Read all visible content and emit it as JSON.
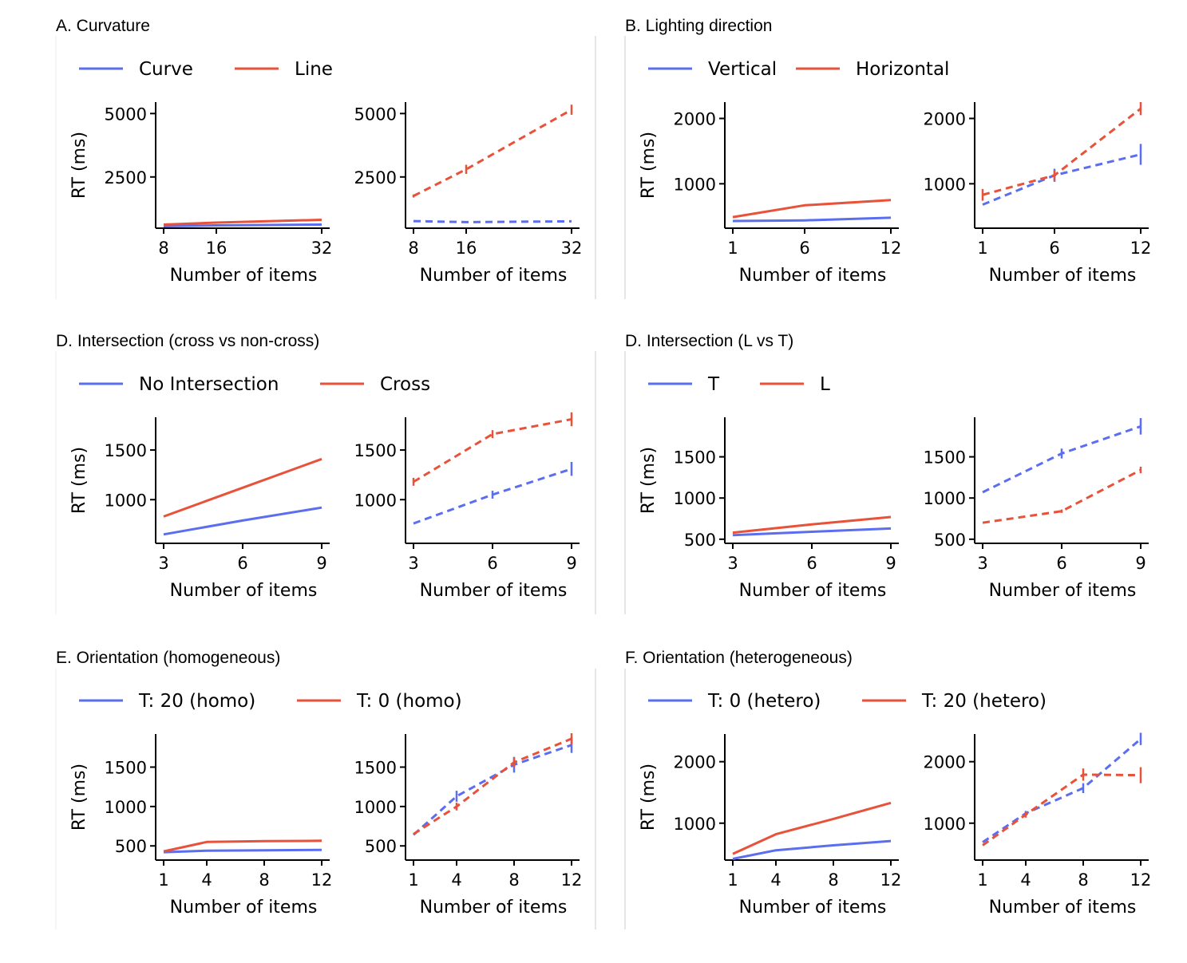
{
  "colors": {
    "series1": "#5b6ef0",
    "series2": "#e8523a",
    "divider": "#cccccc"
  },
  "chart_data": [
    {
      "title": "A.  Curvature",
      "type": "line",
      "legend": [
        "Curve",
        "Line"
      ],
      "xlabel": "Number of items",
      "ylabel": "RT (ms)",
      "x": [
        8,
        16,
        32
      ],
      "xticks": [
        "8",
        "16",
        "32"
      ],
      "xlim": [
        8,
        32
      ],
      "ylim": [
        480,
        5450
      ],
      "yticks": [
        2500,
        5000
      ],
      "subplots": [
        {
          "style": "solid",
          "series": [
            {
              "name": "Curve",
              "values": [
                560,
                590,
                620
              ]
            },
            {
              "name": "Line",
              "values": [
                620,
                700,
                810
              ]
            }
          ]
        },
        {
          "style": "dashed",
          "series": [
            {
              "name": "Curve",
              "values": [
                760,
                720,
                750
              ]
            },
            {
              "name": "Line",
              "values": [
                1750,
                2800,
                5150
              ],
              "err": [
                60,
                180,
                200
              ]
            }
          ]
        }
      ]
    },
    {
      "title": "B.  Lighting direction",
      "type": "line",
      "legend": [
        "Vertical",
        "Horizontal"
      ],
      "xlabel": "Number of items",
      "ylabel": "RT (ms)",
      "x": [
        1,
        6,
        12
      ],
      "xticks": [
        "1",
        "6",
        "12"
      ],
      "xlim": [
        1,
        12
      ],
      "ylim": [
        320,
        2250
      ],
      "yticks": [
        1000,
        2000
      ],
      "subplots": [
        {
          "style": "solid",
          "series": [
            {
              "name": "Vertical",
              "values": [
                430,
                440,
                480
              ]
            },
            {
              "name": "Horizontal",
              "values": [
                490,
                670,
                750
              ]
            }
          ]
        },
        {
          "style": "dashed",
          "series": [
            {
              "name": "Vertical",
              "values": [
                680,
                1130,
                1450
              ],
              "err": [
                0,
                100,
                160
              ]
            },
            {
              "name": "Horizontal",
              "values": [
                830,
                1130,
                2150
              ],
              "err": [
                90,
                80,
                100
              ]
            }
          ]
        }
      ]
    },
    {
      "title": "D.  Intersection (cross vs non-cross)",
      "type": "line",
      "legend": [
        "No Intersection",
        "Cross"
      ],
      "xlabel": "Number of items",
      "ylabel": "RT (ms)",
      "x": [
        3,
        6,
        9
      ],
      "xticks": [
        "3",
        "6",
        "9"
      ],
      "xlim": [
        3,
        9
      ],
      "ylim": [
        560,
        1830
      ],
      "yticks": [
        1000,
        1500
      ],
      "subplots": [
        {
          "style": "solid",
          "series": [
            {
              "name": "No Intersection",
              "values": [
                650,
                790,
                920
              ]
            },
            {
              "name": "Cross",
              "values": [
                830,
                1120,
                1410
              ]
            }
          ]
        },
        {
          "style": "dashed",
          "series": [
            {
              "name": "No Intersection",
              "values": [
                760,
                1050,
                1310
              ],
              "err": [
                0,
                40,
                70
              ]
            },
            {
              "name": "Cross",
              "values": [
                1180,
                1660,
                1810
              ],
              "err": [
                40,
                40,
                70
              ]
            }
          ]
        }
      ]
    },
    {
      "title": "D.  Intersection (L vs T)",
      "type": "line",
      "legend": [
        "T",
        "L"
      ],
      "xlabel": "Number of items",
      "ylabel": "RT (ms)",
      "x": [
        3,
        6,
        9
      ],
      "xticks": [
        "3",
        "6",
        "9"
      ],
      "xlim": [
        3,
        9
      ],
      "ylim": [
        450,
        1980
      ],
      "yticks": [
        500,
        1000,
        1500
      ],
      "subplots": [
        {
          "style": "solid",
          "series": [
            {
              "name": "T",
              "values": [
                550,
                590,
                630
              ]
            },
            {
              "name": "L",
              "values": [
                580,
                680,
                770
              ]
            }
          ]
        },
        {
          "style": "dashed",
          "series": [
            {
              "name": "T",
              "values": [
                1070,
                1540,
                1870
              ],
              "err": [
                0,
                60,
                100
              ]
            },
            {
              "name": "L",
              "values": [
                700,
                840,
                1340
              ],
              "err": [
                0,
                20,
                40
              ]
            }
          ]
        }
      ]
    },
    {
      "title": "E.  Orientation (homogeneous)",
      "type": "line",
      "legend": [
        "T: 20 (homo)",
        "T: 0 (homo)"
      ],
      "xlabel": "Number of items",
      "ylabel": "RT (ms)",
      "x": [
        1,
        4,
        8,
        12
      ],
      "xticks": [
        "1",
        "4",
        "8",
        "12"
      ],
      "xlim": [
        1,
        12
      ],
      "ylim": [
        320,
        1920
      ],
      "yticks": [
        500,
        1000,
        1500
      ],
      "subplots": [
        {
          "style": "solid",
          "series": [
            {
              "name": "T: 20 (homo)",
              "values": [
                420,
                440,
                445,
                450
              ]
            },
            {
              "name": "T: 0 (homo)",
              "values": [
                430,
                550,
                560,
                565
              ]
            }
          ]
        },
        {
          "style": "dashed",
          "series": [
            {
              "name": "T: 20 (homo)",
              "values": [
                640,
                1130,
                1530,
                1780
              ],
              "err": [
                0,
                70,
                100,
                100
              ]
            },
            {
              "name": "T: 0 (homo)",
              "values": [
                650,
                1000,
                1560,
                1860
              ],
              "err": [
                0,
                50,
                60,
                70
              ]
            }
          ]
        }
      ]
    },
    {
      "title": "F.  Orientation (heterogeneous)",
      "type": "line",
      "legend": [
        "T: 0 (hetero)",
        "T: 20 (hetero)"
      ],
      "xlabel": "Number of items",
      "ylabel": "RT (ms)",
      "x": [
        1,
        4,
        8,
        12
      ],
      "xticks": [
        "1",
        "4",
        "8",
        "12"
      ],
      "xlim": [
        1,
        12
      ],
      "ylim": [
        400,
        2450
      ],
      "yticks": [
        1000,
        2000
      ],
      "subplots": [
        {
          "style": "solid",
          "series": [
            {
              "name": "T: 0 (hetero)",
              "values": [
                420,
                560,
                640,
                710
              ]
            },
            {
              "name": "T: 20 (hetero)",
              "values": [
                500,
                820,
                1070,
                1330
              ]
            }
          ]
        },
        {
          "style": "dashed",
          "series": [
            {
              "name": "T: 0 (hetero)",
              "values": [
                690,
                1160,
                1570,
                2370
              ],
              "err": [
                0,
                40,
                80,
                100
              ]
            },
            {
              "name": "T: 20 (hetero)",
              "values": [
                640,
                1140,
                1790,
                1780
              ],
              "err": [
                0,
                50,
                100,
                130
              ]
            }
          ]
        }
      ]
    }
  ]
}
